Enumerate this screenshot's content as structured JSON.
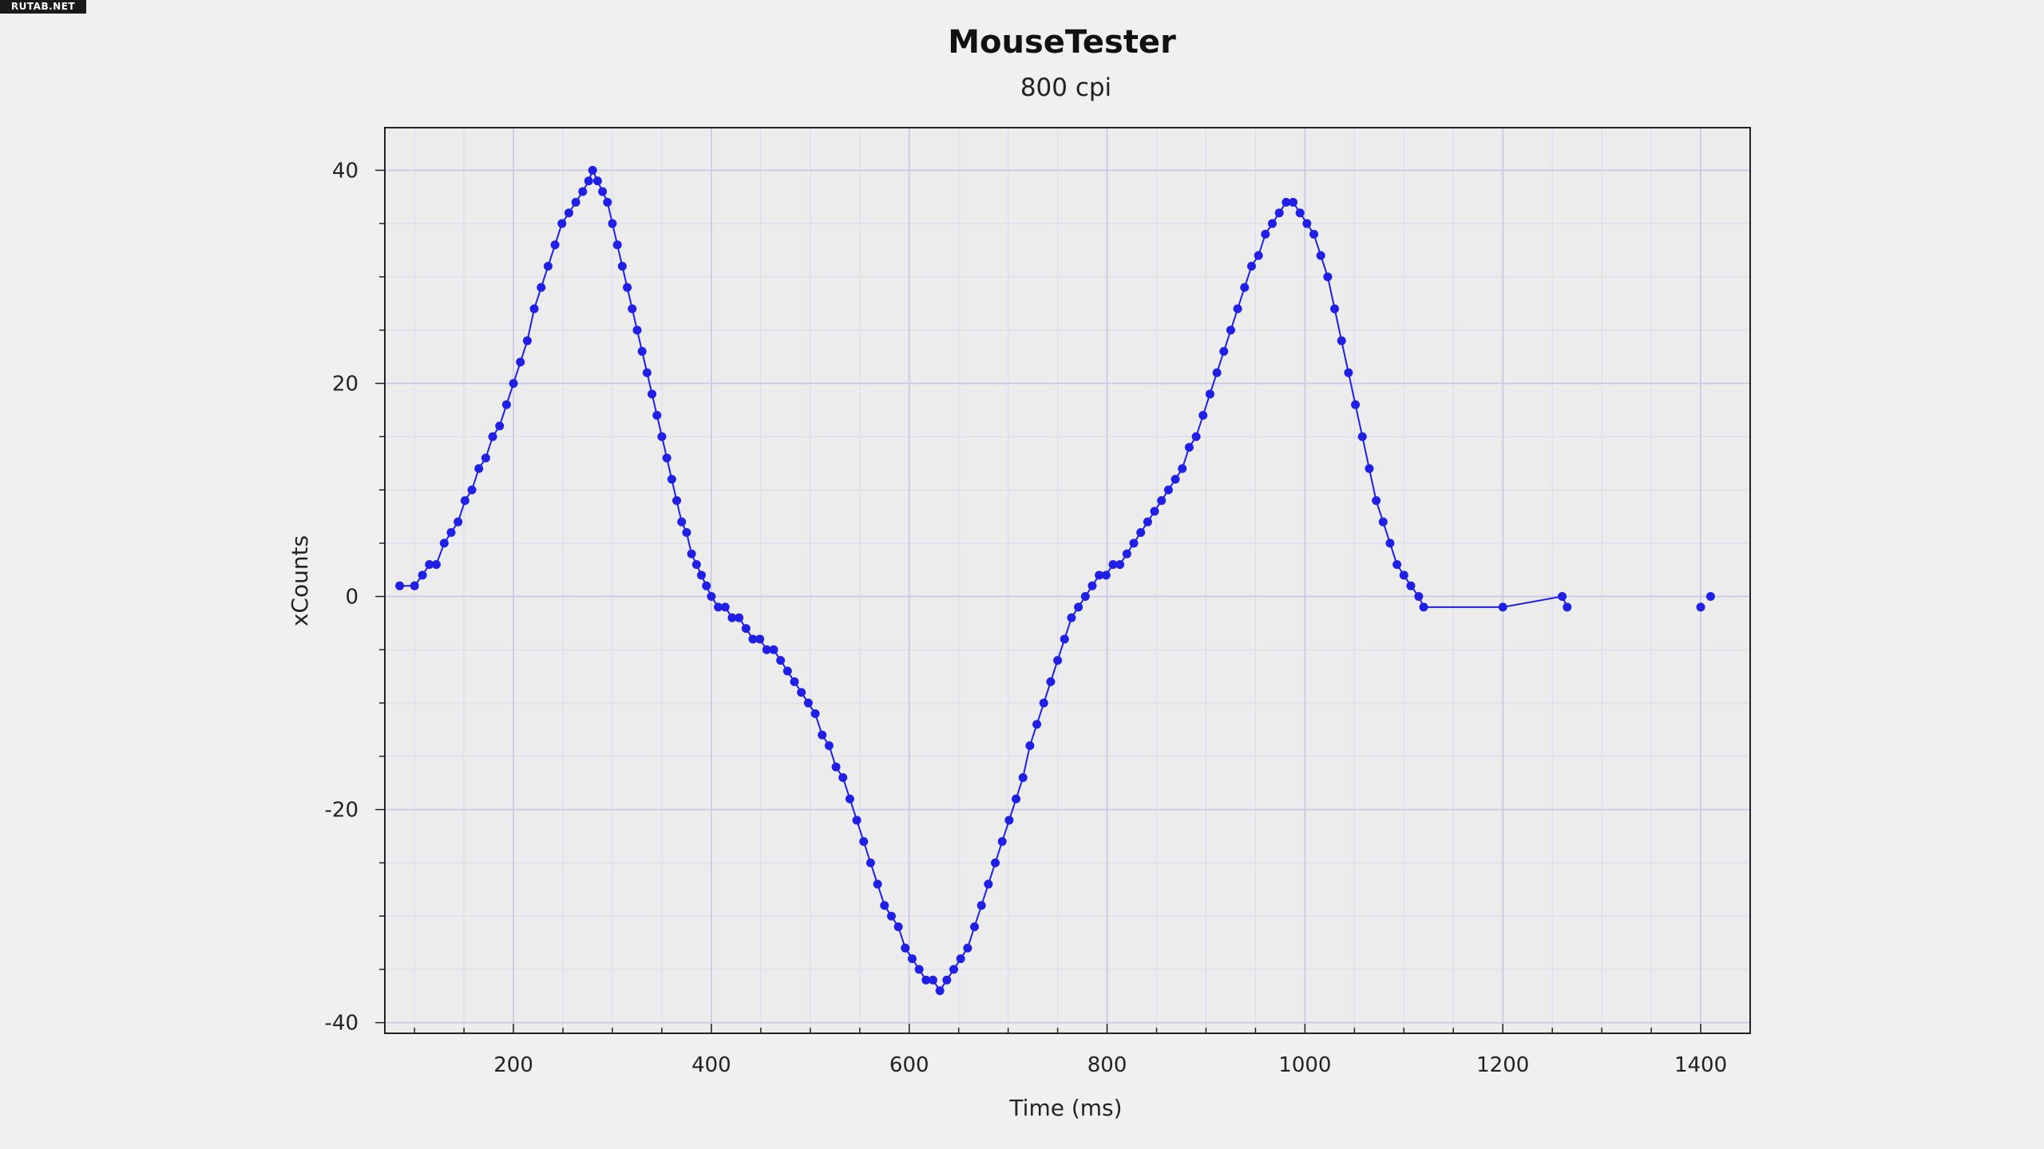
{
  "watermark": "RUTAB.NET",
  "chart_data": {
    "type": "line",
    "title": "MouseTester",
    "subtitle": "800 cpi",
    "xlabel": "Time (ms)",
    "ylabel": "xCounts",
    "xlim": [
      70,
      1450
    ],
    "ylim": [
      -41,
      44
    ],
    "x_ticks": [
      200,
      400,
      600,
      800,
      1000,
      1200,
      1400
    ],
    "x_tick_labels": [
      "200",
      "400",
      "600",
      "800",
      "1000",
      "1200",
      "1400"
    ],
    "y_ticks": [
      -40,
      -20,
      0,
      20,
      40
    ],
    "y_tick_labels": [
      "-40",
      "-20",
      "0",
      "20",
      "40"
    ],
    "grid": true,
    "colors": {
      "series": "#1f1fe6",
      "grid_major": "#c9c9e6",
      "grid_minor": "#dcdcec"
    },
    "series": [
      {
        "points": [
          [
            85,
            1
          ],
          [
            100,
            1
          ],
          [
            108,
            2
          ],
          [
            115,
            3
          ],
          [
            122,
            3
          ],
          [
            130,
            5
          ],
          [
            137,
            6
          ],
          [
            144,
            7
          ],
          [
            151,
            9
          ],
          [
            158,
            10
          ],
          [
            165,
            12
          ],
          [
            172,
            13
          ],
          [
            179,
            15
          ],
          [
            186,
            16
          ],
          [
            193,
            18
          ],
          [
            200,
            20
          ],
          [
            207,
            22
          ],
          [
            214,
            24
          ],
          [
            221,
            27
          ],
          [
            228,
            29
          ],
          [
            235,
            31
          ],
          [
            242,
            33
          ],
          [
            249,
            35
          ],
          [
            256,
            36
          ],
          [
            263,
            37
          ],
          [
            270,
            38
          ],
          [
            276,
            39
          ],
          [
            280,
            40
          ],
          [
            285,
            39
          ],
          [
            290,
            38
          ],
          [
            295,
            37
          ],
          [
            300,
            35
          ],
          [
            305,
            33
          ],
          [
            310,
            31
          ],
          [
            315,
            29
          ],
          [
            320,
            27
          ],
          [
            325,
            25
          ],
          [
            330,
            23
          ],
          [
            335,
            21
          ],
          [
            340,
            19
          ],
          [
            345,
            17
          ],
          [
            350,
            15
          ],
          [
            355,
            13
          ],
          [
            360,
            11
          ],
          [
            365,
            9
          ],
          [
            370,
            7
          ],
          [
            375,
            6
          ],
          [
            380,
            4
          ],
          [
            385,
            3
          ],
          [
            390,
            2
          ],
          [
            395,
            1
          ],
          [
            400,
            0
          ],
          [
            407,
            -1
          ],
          [
            414,
            -1
          ],
          [
            421,
            -2
          ],
          [
            428,
            -2
          ],
          [
            435,
            -3
          ],
          [
            442,
            -4
          ],
          [
            449,
            -4
          ],
          [
            456,
            -5
          ],
          [
            463,
            -5
          ],
          [
            470,
            -6
          ],
          [
            477,
            -7
          ],
          [
            484,
            -8
          ],
          [
            491,
            -9
          ],
          [
            498,
            -10
          ],
          [
            505,
            -11
          ],
          [
            512,
            -13
          ],
          [
            519,
            -14
          ],
          [
            526,
            -16
          ],
          [
            533,
            -17
          ],
          [
            540,
            -19
          ],
          [
            547,
            -21
          ],
          [
            554,
            -23
          ],
          [
            561,
            -25
          ],
          [
            568,
            -27
          ],
          [
            575,
            -29
          ],
          [
            582,
            -30
          ],
          [
            589,
            -31
          ],
          [
            596,
            -33
          ],
          [
            603,
            -34
          ],
          [
            610,
            -35
          ],
          [
            617,
            -36
          ],
          [
            624,
            -36
          ],
          [
            631,
            -37
          ],
          [
            638,
            -36
          ],
          [
            645,
            -35
          ],
          [
            652,
            -34
          ],
          [
            659,
            -33
          ],
          [
            666,
            -31
          ],
          [
            673,
            -29
          ],
          [
            680,
            -27
          ],
          [
            687,
            -25
          ],
          [
            694,
            -23
          ],
          [
            701,
            -21
          ],
          [
            708,
            -19
          ],
          [
            715,
            -17
          ],
          [
            722,
            -14
          ],
          [
            729,
            -12
          ],
          [
            736,
            -10
          ],
          [
            743,
            -8
          ],
          [
            750,
            -6
          ],
          [
            757,
            -4
          ],
          [
            764,
            -2
          ],
          [
            771,
            -1
          ],
          [
            778,
            0
          ],
          [
            785,
            1
          ],
          [
            792,
            2
          ],
          [
            799,
            2
          ],
          [
            806,
            3
          ],
          [
            813,
            3
          ],
          [
            820,
            4
          ],
          [
            827,
            5
          ],
          [
            834,
            6
          ],
          [
            841,
            7
          ],
          [
            848,
            8
          ],
          [
            855,
            9
          ],
          [
            862,
            10
          ],
          [
            869,
            11
          ],
          [
            876,
            12
          ],
          [
            883,
            14
          ],
          [
            890,
            15
          ],
          [
            897,
            17
          ],
          [
            904,
            19
          ],
          [
            911,
            21
          ],
          [
            918,
            23
          ],
          [
            925,
            25
          ],
          [
            932,
            27
          ],
          [
            939,
            29
          ],
          [
            946,
            31
          ],
          [
            953,
            32
          ],
          [
            960,
            34
          ],
          [
            967,
            35
          ],
          [
            974,
            36
          ],
          [
            981,
            37
          ],
          [
            988,
            37
          ],
          [
            995,
            36
          ],
          [
            1002,
            35
          ],
          [
            1009,
            34
          ],
          [
            1016,
            32
          ],
          [
            1023,
            30
          ],
          [
            1030,
            27
          ],
          [
            1037,
            24
          ],
          [
            1044,
            21
          ],
          [
            1051,
            18
          ],
          [
            1058,
            15
          ],
          [
            1065,
            12
          ],
          [
            1072,
            9
          ],
          [
            1079,
            7
          ],
          [
            1086,
            5
          ],
          [
            1093,
            3
          ],
          [
            1100,
            2
          ],
          [
            1107,
            1
          ],
          [
            1115,
            0
          ],
          [
            1120,
            -1
          ],
          [
            1200,
            -1
          ],
          [
            1260,
            0
          ],
          [
            1265,
            -1
          ],
          [
            1400,
            -1
          ],
          [
            1410,
            0
          ]
        ]
      }
    ]
  }
}
